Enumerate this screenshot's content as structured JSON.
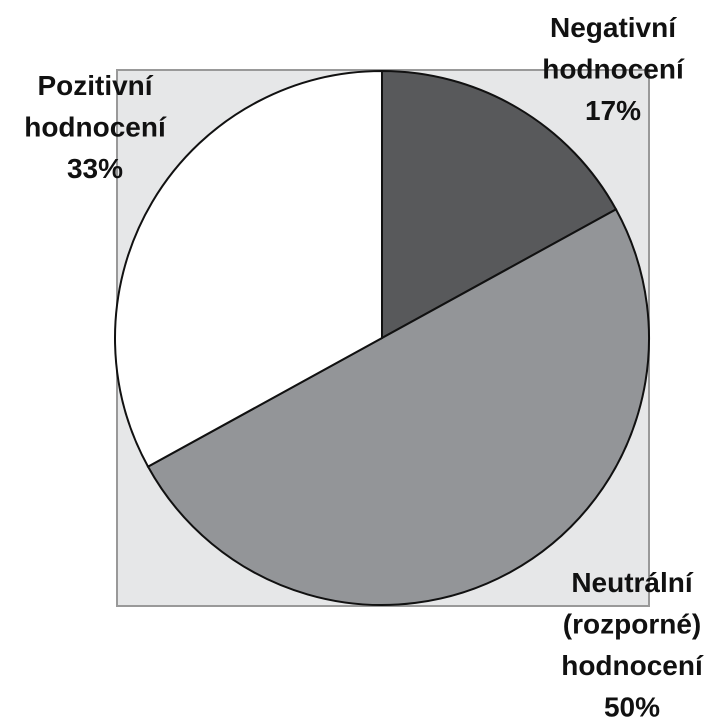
{
  "chart_data": {
    "type": "pie",
    "categories": [
      [
        "Negativní",
        "hodnocení"
      ],
      [
        "Neutrální",
        "(rozporné)",
        "hodnocení"
      ],
      [
        "Pozitivní",
        "hodnocení"
      ]
    ],
    "values": [
      17,
      50,
      33
    ],
    "value_labels": [
      "17%",
      "50%",
      "33%"
    ],
    "colors": [
      "#58595b",
      "#939598",
      "#ffffff"
    ]
  }
}
